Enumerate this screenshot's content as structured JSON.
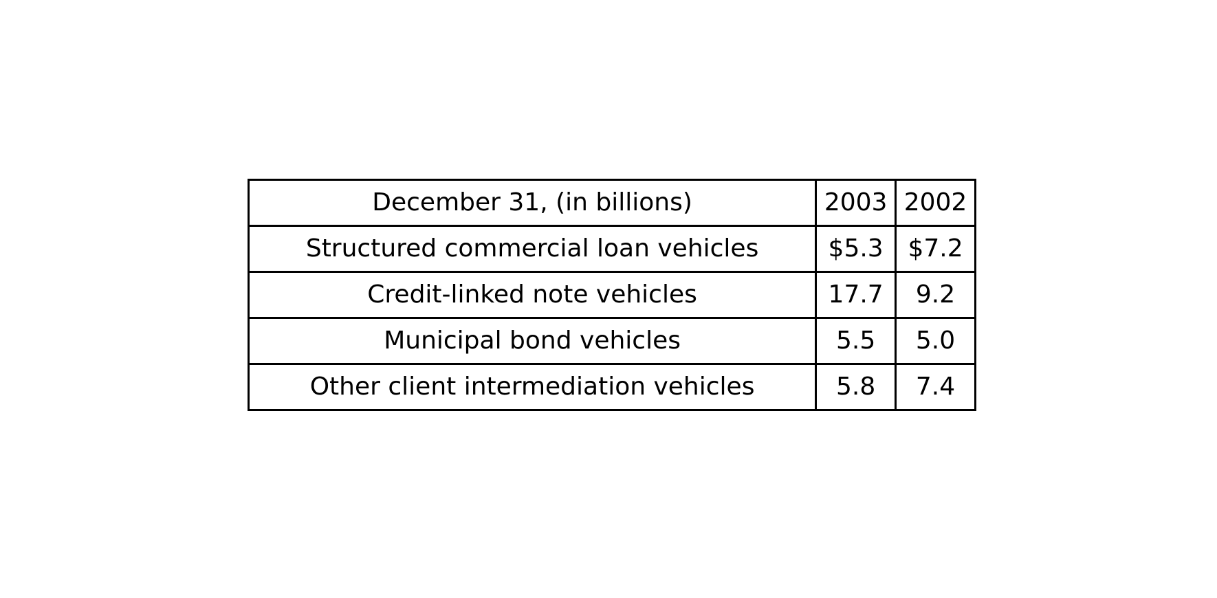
{
  "chart_data": {
    "type": "table",
    "columns": [
      "December 31, (in billions)",
      "2003",
      "2002"
    ],
    "rows": [
      [
        "Structured commercial loan vehicles",
        "$5.3",
        "$7.2"
      ],
      [
        "Credit-linked note vehicles",
        "17.7",
        "9.2"
      ],
      [
        "Municipal bond vehicles",
        "5.5",
        "5.0"
      ],
      [
        "Other client intermediation vehicles",
        "5.8",
        "7.4"
      ]
    ]
  }
}
